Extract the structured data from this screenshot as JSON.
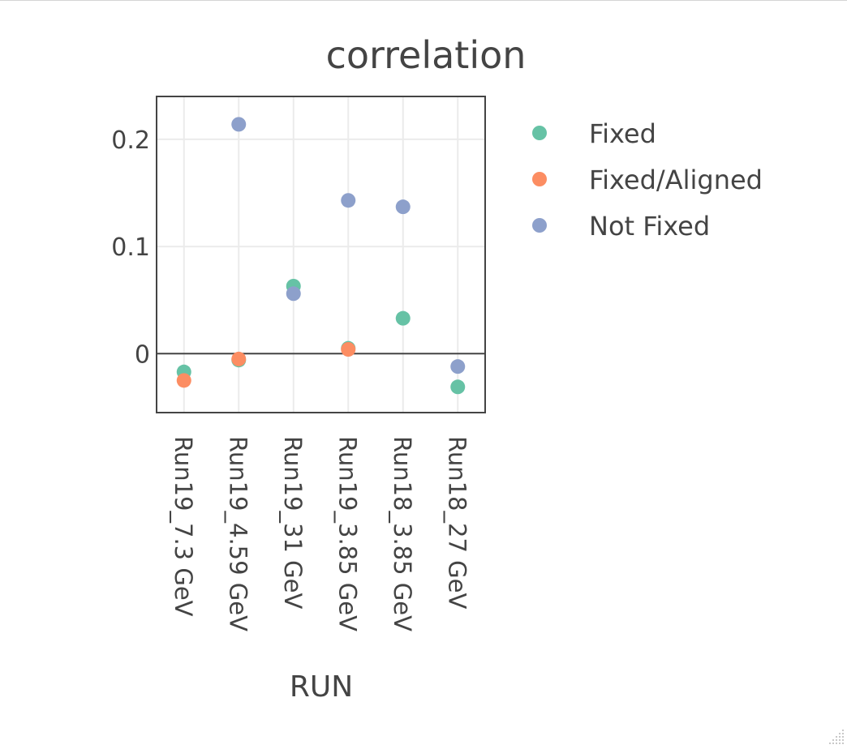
{
  "chart_data": {
    "type": "scatter",
    "title": "correlation",
    "xlabel": "RUN",
    "ylabel": "",
    "categories": [
      "Run19_7.3 GeV",
      "Run19_4.59 GeV",
      "Run19_31 GeV",
      "Run19_3.85 GeV",
      "Run18_3.85 GeV",
      "Run18_27 GeV"
    ],
    "ylim": [
      -0.055,
      0.24
    ],
    "yticks": [
      0,
      0.1,
      0.2
    ],
    "ytick_labels": [
      "0",
      "0.1",
      "0.2"
    ],
    "grid": true,
    "zero_line": true,
    "legend_position": "right",
    "series": [
      {
        "name": "Fixed",
        "color": "#66c2a5",
        "values": [
          -0.017,
          -0.006,
          0.063,
          0.005,
          0.033,
          -0.031
        ]
      },
      {
        "name": "Fixed/Aligned",
        "color": "#fc8d62",
        "values": [
          -0.025,
          -0.005,
          null,
          0.004,
          null,
          null
        ]
      },
      {
        "name": "Not Fixed",
        "color": "#8da0cb",
        "values": [
          null,
          0.214,
          0.056,
          0.143,
          0.137,
          -0.012
        ]
      }
    ]
  }
}
